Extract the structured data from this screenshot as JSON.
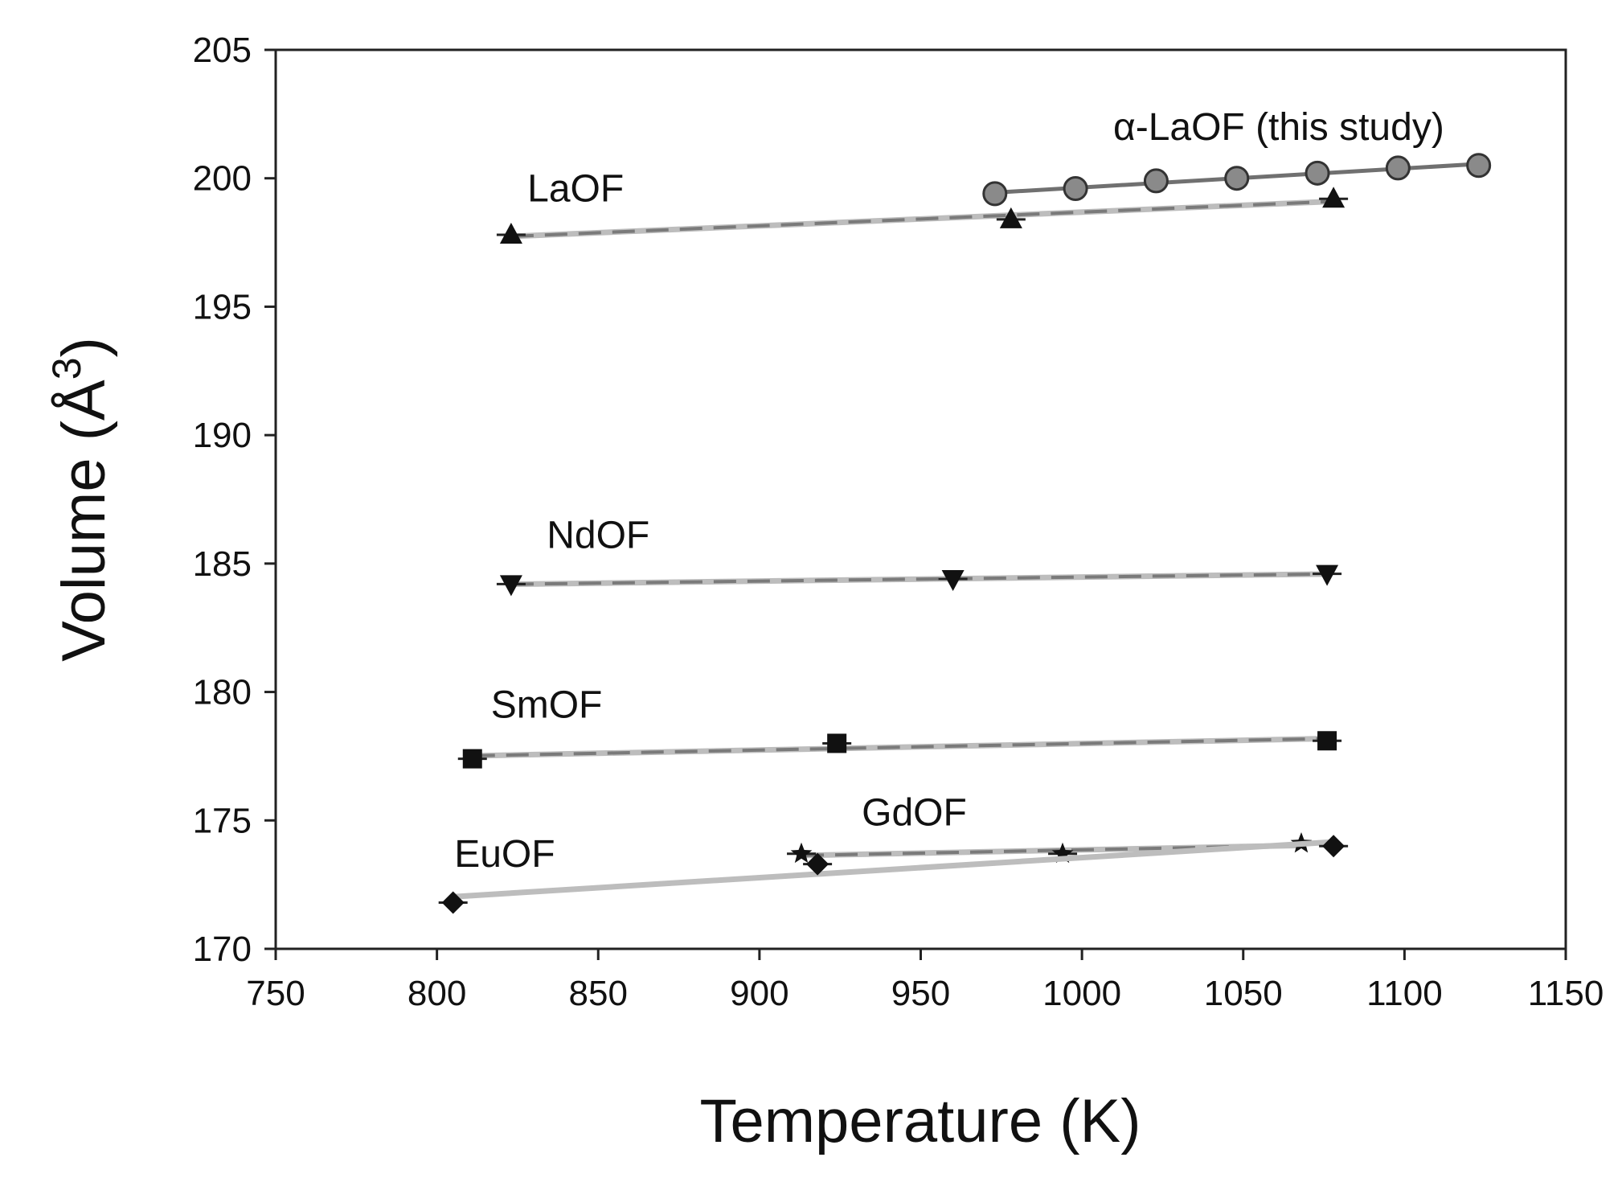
{
  "chart_data": {
    "type": "scatter",
    "xlabel": "Temperature (K)",
    "ylabel_main": "Volume (Å",
    "ylabel_sup": "3",
    "ylabel_close": ")",
    "xlim": [
      750,
      1150
    ],
    "ylim": [
      170,
      205
    ],
    "x_ticks": [
      "750",
      "800",
      "850",
      "900",
      "950",
      "1000",
      "1050",
      "1100",
      "1150"
    ],
    "y_ticks": [
      "170",
      "175",
      "180",
      "185",
      "190",
      "195",
      "200",
      "205"
    ],
    "grid": false,
    "series": [
      {
        "name": "α-LaOF (this study)",
        "marker": "circle",
        "line": "solid",
        "x": [
          973,
          998,
          1023,
          1048,
          1073,
          1098,
          1123
        ],
        "y": [
          199.4,
          199.6,
          199.9,
          200.0,
          200.2,
          200.4,
          200.5
        ]
      },
      {
        "name": "LaOF",
        "marker": "triangle-up",
        "line": "dashed",
        "x": [
          823,
          978,
          1078
        ],
        "y": [
          197.8,
          198.4,
          199.2
        ]
      },
      {
        "name": "NdOF",
        "marker": "triangle-down",
        "line": "dashed",
        "x": [
          823,
          960,
          1076
        ],
        "y": [
          184.2,
          184.4,
          184.6
        ]
      },
      {
        "name": "SmOF",
        "marker": "square",
        "line": "dashed",
        "x": [
          811,
          924,
          1076
        ],
        "y": [
          177.4,
          178.0,
          178.1
        ]
      },
      {
        "name": "GdOF",
        "marker": "star",
        "line": "dashed",
        "x": [
          913,
          994,
          1068
        ],
        "y": [
          173.7,
          173.7,
          174.1
        ]
      },
      {
        "name": "EuOF",
        "marker": "diamond",
        "line": "light",
        "x": [
          805,
          918,
          1078
        ],
        "y": [
          171.8,
          173.3,
          174.0
        ]
      }
    ],
    "annotations": [
      {
        "text": "α-LaOF (this study)",
        "x": 1061,
        "y": 201.5
      },
      {
        "text": "LaOF",
        "x": 843,
        "y": 199.1
      },
      {
        "text": "NdOF",
        "x": 850,
        "y": 185.6
      },
      {
        "text": "SmOF",
        "x": 834,
        "y": 179.0
      },
      {
        "text": "GdOF",
        "x": 948,
        "y": 174.8
      },
      {
        "text": "EuOF",
        "x": 821,
        "y": 173.2
      }
    ]
  }
}
